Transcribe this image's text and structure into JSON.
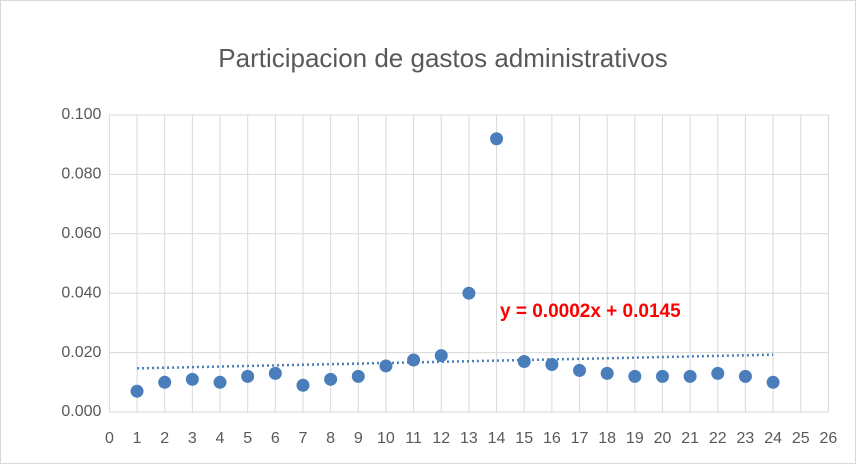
{
  "chart_data": {
    "type": "scatter",
    "title": "Participacion de gastos administrativos",
    "x": [
      1,
      2,
      3,
      4,
      5,
      6,
      7,
      8,
      9,
      10,
      11,
      12,
      13,
      14,
      15,
      16,
      17,
      18,
      19,
      20,
      21,
      22,
      23,
      24
    ],
    "values": [
      0.007,
      0.01,
      0.011,
      0.01,
      0.012,
      0.013,
      0.009,
      0.011,
      0.012,
      0.0155,
      0.0175,
      0.019,
      0.04,
      0.092,
      0.017,
      0.016,
      0.014,
      0.013,
      0.012,
      0.012,
      0.012,
      0.013,
      0.012,
      0.01
    ],
    "color": "#4a7ebb",
    "xlim": [
      0,
      26
    ],
    "xticks": [
      0,
      1,
      2,
      3,
      4,
      5,
      6,
      7,
      8,
      9,
      10,
      11,
      12,
      13,
      14,
      15,
      16,
      17,
      18,
      19,
      20,
      21,
      22,
      23,
      24,
      25,
      26
    ],
    "ylim": [
      0,
      0.1
    ],
    "yticks": [
      {
        "value": 0,
        "label": "0.000"
      },
      {
        "value": 0.02,
        "label": "0.020"
      },
      {
        "value": 0.04,
        "label": "0.040"
      },
      {
        "value": 0.06,
        "label": "0.060"
      },
      {
        "value": 0.08,
        "label": "0.080"
      },
      {
        "value": 0.1,
        "label": "0.100"
      }
    ],
    "grid": true,
    "trendline": {
      "label": "y = 0.0002x + 0.0145",
      "slope": 0.0002,
      "intercept": 0.0145,
      "x_range": [
        1,
        24
      ],
      "color": "#4a7ebb",
      "label_color": "#ff0000"
    }
  }
}
